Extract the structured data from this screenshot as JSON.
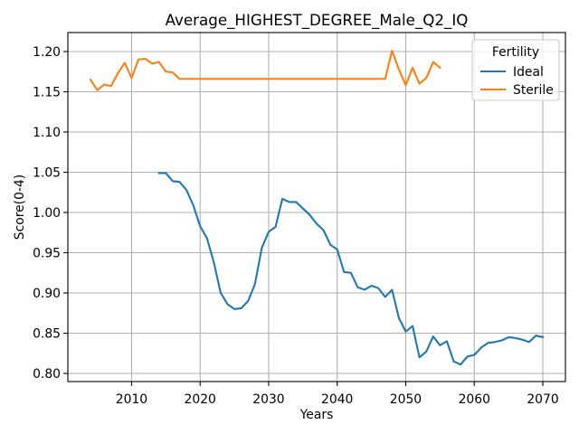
{
  "chart_data": {
    "type": "line",
    "title": "Average_HIGHEST_DEGREE_Male_Q2_IQ",
    "xlabel": "Years",
    "ylabel": "Score(0-4)",
    "xlim": [
      2000.7,
      2073.3
    ],
    "ylim": [
      0.7899,
      1.2236
    ],
    "x_tick_labels": [
      "2010",
      "2020",
      "2030",
      "2040",
      "2050",
      "2060",
      "2070"
    ],
    "y_tick_labels": [
      "0.80",
      "0.85",
      "0.90",
      "0.95",
      "1.00",
      "1.05",
      "1.10",
      "1.15",
      "1.20"
    ],
    "grid": true,
    "legend": {
      "title": "Fertility",
      "placement": "top-right"
    },
    "series": [
      {
        "name": "Ideal",
        "color": "#1f77b4",
        "x": [
          2014,
          2015,
          2016,
          2017,
          2018,
          2019,
          2020,
          2021,
          2022,
          2023,
          2024,
          2025,
          2026,
          2027,
          2028,
          2029,
          2030,
          2031,
          2032,
          2033,
          2034,
          2035,
          2036,
          2037,
          2038,
          2039,
          2040,
          2041,
          2042,
          2043,
          2044,
          2045,
          2046,
          2047,
          2048,
          2049,
          2050,
          2051,
          2052,
          2053,
          2054,
          2055,
          2056,
          2057,
          2058,
          2059,
          2060,
          2061,
          2062,
          2063,
          2064,
          2065,
          2066,
          2067,
          2068,
          2069,
          2070
        ],
        "y": [
          1.049,
          1.049,
          1.039,
          1.038,
          1.028,
          1.009,
          0.983,
          0.968,
          0.938,
          0.9,
          0.886,
          0.88,
          0.881,
          0.89,
          0.911,
          0.956,
          0.976,
          0.982,
          1.017,
          1.013,
          1.013,
          1.005,
          0.997,
          0.986,
          0.978,
          0.96,
          0.954,
          0.926,
          0.925,
          0.907,
          0.904,
          0.909,
          0.906,
          0.895,
          0.904,
          0.869,
          0.852,
          0.859,
          0.82,
          0.827,
          0.846,
          0.835,
          0.84,
          0.815,
          0.811,
          0.821,
          0.823,
          0.832,
          0.838,
          0.839,
          0.841,
          0.845,
          0.844,
          0.842,
          0.839,
          0.847,
          0.845
        ]
      },
      {
        "name": "Sterile",
        "color": "#ff7f0e",
        "x": [
          2004,
          2005,
          2006,
          2007,
          2008,
          2009,
          2010,
          2011,
          2012,
          2013,
          2014,
          2015,
          2016,
          2017,
          2018,
          2019,
          2020,
          2021,
          2022,
          2023,
          2024,
          2025,
          2026,
          2027,
          2028,
          2029,
          2030,
          2031,
          2032,
          2033,
          2034,
          2035,
          2036,
          2037,
          2038,
          2039,
          2040,
          2041,
          2042,
          2043,
          2044,
          2045,
          2046,
          2047,
          2048,
          2049,
          2050,
          2051,
          2052,
          2053,
          2054,
          2055
        ],
        "y": [
          1.165,
          1.152,
          1.159,
          1.157,
          1.173,
          1.186,
          1.167,
          1.19,
          1.191,
          1.185,
          1.187,
          1.175,
          1.174,
          1.166,
          1.166,
          1.166,
          1.166,
          1.166,
          1.166,
          1.166,
          1.166,
          1.166,
          1.166,
          1.166,
          1.166,
          1.166,
          1.166,
          1.166,
          1.166,
          1.166,
          1.166,
          1.166,
          1.166,
          1.166,
          1.166,
          1.166,
          1.166,
          1.166,
          1.166,
          1.166,
          1.166,
          1.166,
          1.166,
          1.166,
          1.201,
          1.178,
          1.158,
          1.18,
          1.16,
          1.167,
          1.187,
          1.18
        ]
      }
    ]
  }
}
